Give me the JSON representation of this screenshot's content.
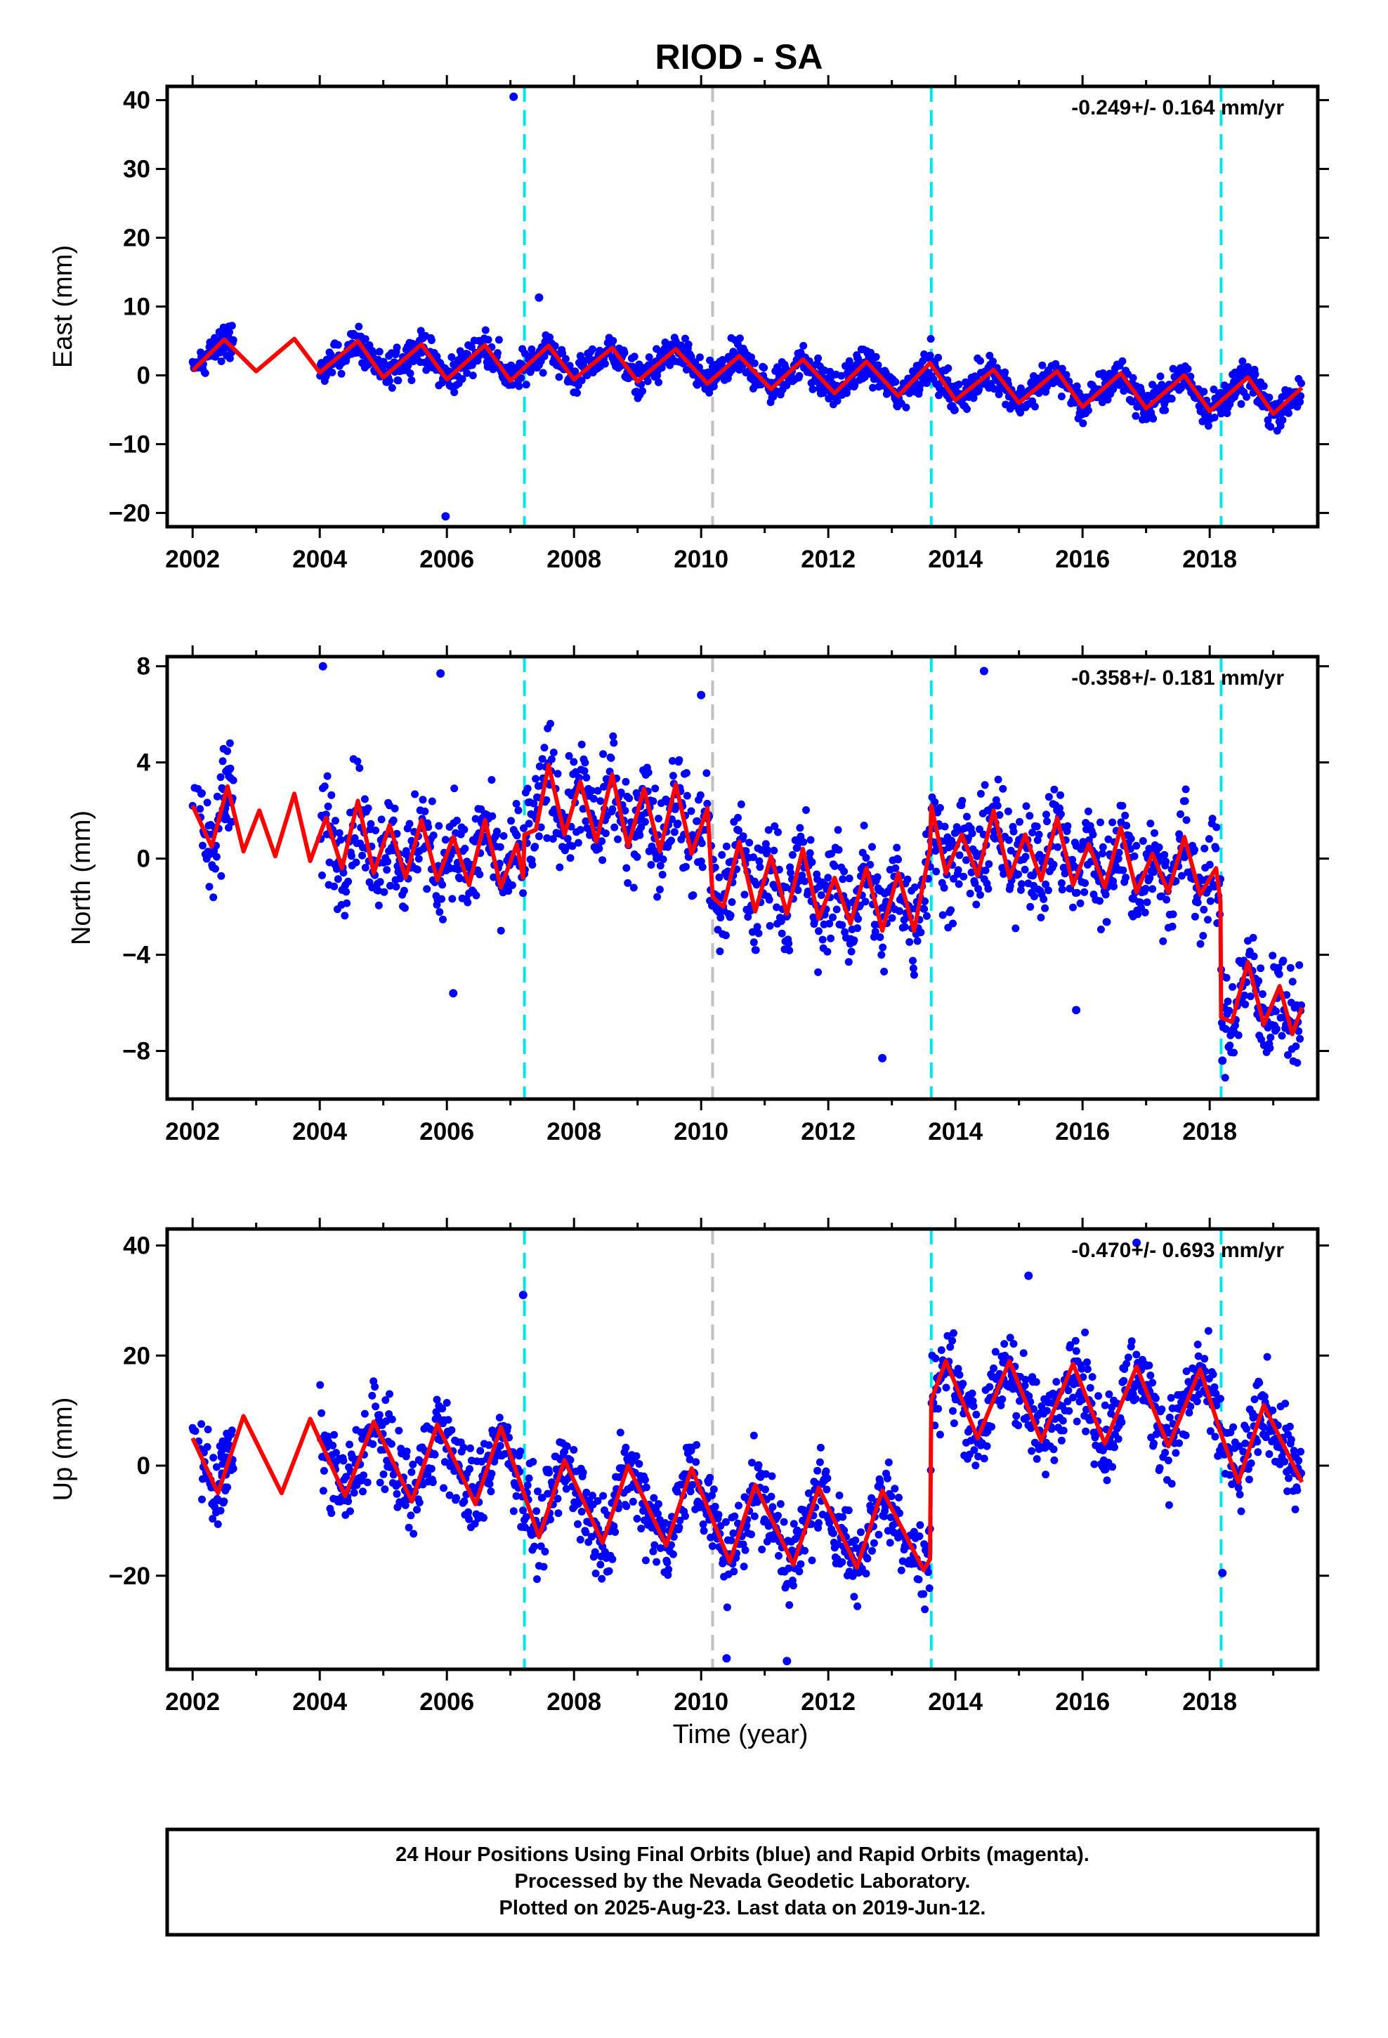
{
  "figure": {
    "title": "RIOD - SA",
    "xlabel": "Time (year)",
    "footer_lines": [
      "24 Hour Positions Using Final Orbits (blue) and Rapid Orbits (magenta).",
      "Processed by the Nevada Geodetic Laboratory.",
      "Plotted on 2025-Aug-23. Last data on 2019-Jun-12."
    ]
  },
  "colors": {
    "final_orbit_points": "#0000ff",
    "model_fit": "#ff0000",
    "equipment_change": "#00e5ee",
    "other_event": "#c0c0c0",
    "frame": "#000000"
  },
  "chart_data": [
    {
      "type": "scatter",
      "panel": "east",
      "ylabel": "East (mm)",
      "rate_label": "-0.249+/- 0.164 mm/yr",
      "xlim": [
        2001.6,
        2019.7
      ],
      "ylim": [
        -22,
        42
      ],
      "x_ticks": [
        2002,
        2004,
        2006,
        2008,
        2010,
        2012,
        2014,
        2016,
        2018
      ],
      "y_ticks": [
        -20,
        -10,
        0,
        10,
        20,
        30,
        40
      ],
      "event_lines": [
        {
          "x": 2007.22,
          "color": "#00e5ee"
        },
        {
          "x": 2010.18,
          "color": "#c0c0c0"
        },
        {
          "x": 2013.62,
          "color": "#00e5ee"
        },
        {
          "x": 2018.18,
          "color": "#00e5ee"
        }
      ],
      "fit": [
        [
          2002.0,
          0.7
        ],
        [
          2002.5,
          5.2
        ],
        [
          2003.0,
          0.6
        ],
        [
          2003.6,
          5.3
        ],
        [
          2004.0,
          0.4
        ],
        [
          2004.6,
          5.0
        ],
        [
          2005.0,
          -0.3
        ],
        [
          2005.6,
          4.5
        ],
        [
          2006.0,
          -0.6
        ],
        [
          2006.6,
          4.4
        ],
        [
          2007.0,
          -0.8
        ],
        [
          2007.6,
          4.3
        ],
        [
          2008.0,
          -0.6
        ],
        [
          2008.6,
          4.0
        ],
        [
          2009.0,
          -0.9
        ],
        [
          2009.6,
          3.8
        ],
        [
          2010.1,
          -1.2
        ],
        [
          2010.6,
          2.8
        ],
        [
          2011.1,
          -2.0
        ],
        [
          2011.6,
          2.3
        ],
        [
          2012.1,
          -2.6
        ],
        [
          2012.6,
          2.0
        ],
        [
          2013.1,
          -3.0
        ],
        [
          2013.6,
          1.8
        ],
        [
          2014.0,
          -3.6
        ],
        [
          2014.6,
          0.8
        ],
        [
          2015.0,
          -4.0
        ],
        [
          2015.6,
          0.6
        ],
        [
          2016.0,
          -4.6
        ],
        [
          2016.6,
          0.3
        ],
        [
          2017.0,
          -4.8
        ],
        [
          2017.6,
          0.0
        ],
        [
          2018.0,
          -5.2
        ],
        [
          2018.6,
          -0.3
        ],
        [
          2019.0,
          -5.6
        ],
        [
          2019.45,
          -1.8
        ]
      ],
      "outliers": [
        [
          2007.05,
          40.5
        ],
        [
          2005.98,
          -20.5
        ],
        [
          2007.45,
          11.3
        ]
      ]
    },
    {
      "type": "scatter",
      "panel": "north",
      "ylabel": "North (mm)",
      "rate_label": "-0.358+/- 0.181 mm/yr",
      "xlim": [
        2001.6,
        2019.7
      ],
      "ylim": [
        -10,
        8.4
      ],
      "x_ticks": [
        2002,
        2004,
        2006,
        2008,
        2010,
        2012,
        2014,
        2016,
        2018
      ],
      "y_ticks": [
        -8,
        -4,
        0,
        4,
        8
      ],
      "event_lines": [
        {
          "x": 2007.22,
          "color": "#00e5ee"
        },
        {
          "x": 2010.18,
          "color": "#c0c0c0"
        },
        {
          "x": 2013.62,
          "color": "#00e5ee"
        },
        {
          "x": 2018.18,
          "color": "#00e5ee"
        }
      ],
      "fit": [
        [
          2002.0,
          2.2
        ],
        [
          2002.3,
          0.5
        ],
        [
          2002.55,
          3.0
        ],
        [
          2002.8,
          0.3
        ],
        [
          2003.05,
          2.0
        ],
        [
          2003.3,
          0.1
        ],
        [
          2003.6,
          2.7
        ],
        [
          2003.85,
          -0.1
        ],
        [
          2004.1,
          1.7
        ],
        [
          2004.35,
          -0.4
        ],
        [
          2004.6,
          2.4
        ],
        [
          2004.85,
          -0.6
        ],
        [
          2005.1,
          1.4
        ],
        [
          2005.35,
          -0.8
        ],
        [
          2005.6,
          1.6
        ],
        [
          2005.85,
          -0.9
        ],
        [
          2006.1,
          0.9
        ],
        [
          2006.35,
          -1.1
        ],
        [
          2006.6,
          1.6
        ],
        [
          2006.85,
          -1.2
        ],
        [
          2007.1,
          0.6
        ],
        [
          2007.2,
          -0.8
        ],
        [
          2007.22,
          1.0
        ],
        [
          2007.4,
          1.2
        ],
        [
          2007.6,
          3.9
        ],
        [
          2007.85,
          1.0
        ],
        [
          2008.1,
          3.2
        ],
        [
          2008.35,
          0.7
        ],
        [
          2008.6,
          3.5
        ],
        [
          2008.85,
          0.5
        ],
        [
          2009.1,
          2.9
        ],
        [
          2009.35,
          0.3
        ],
        [
          2009.6,
          3.1
        ],
        [
          2009.85,
          0.2
        ],
        [
          2010.1,
          2.1
        ],
        [
          2010.18,
          -1.6
        ],
        [
          2010.35,
          -2.0
        ],
        [
          2010.6,
          0.7
        ],
        [
          2010.85,
          -2.2
        ],
        [
          2011.1,
          0.1
        ],
        [
          2011.35,
          -2.3
        ],
        [
          2011.6,
          0.4
        ],
        [
          2011.85,
          -2.5
        ],
        [
          2012.1,
          -0.8
        ],
        [
          2012.35,
          -2.7
        ],
        [
          2012.6,
          -0.4
        ],
        [
          2012.85,
          -3.0
        ],
        [
          2013.1,
          -0.6
        ],
        [
          2013.35,
          -3.0
        ],
        [
          2013.6,
          0.4
        ],
        [
          2013.62,
          2.2
        ],
        [
          2013.85,
          -0.6
        ],
        [
          2014.1,
          1.0
        ],
        [
          2014.35,
          -0.7
        ],
        [
          2014.6,
          2.0
        ],
        [
          2014.85,
          -0.8
        ],
        [
          2015.1,
          1.0
        ],
        [
          2015.35,
          -0.9
        ],
        [
          2015.6,
          1.7
        ],
        [
          2015.85,
          -1.1
        ],
        [
          2016.1,
          0.6
        ],
        [
          2016.35,
          -1.2
        ],
        [
          2016.6,
          1.3
        ],
        [
          2016.85,
          -1.4
        ],
        [
          2017.1,
          0.2
        ],
        [
          2017.35,
          -1.4
        ],
        [
          2017.6,
          0.9
        ],
        [
          2017.85,
          -1.5
        ],
        [
          2018.1,
          -0.4
        ],
        [
          2018.17,
          -1.8
        ],
        [
          2018.18,
          -6.6
        ],
        [
          2018.35,
          -6.8
        ],
        [
          2018.6,
          -4.3
        ],
        [
          2018.85,
          -6.9
        ],
        [
          2019.1,
          -5.3
        ],
        [
          2019.3,
          -7.3
        ],
        [
          2019.45,
          -6.2
        ]
      ],
      "outliers": [
        [
          2004.05,
          8.0
        ],
        [
          2005.9,
          7.7
        ],
        [
          2014.45,
          7.8
        ],
        [
          2010.0,
          6.8
        ],
        [
          2012.85,
          -8.3
        ],
        [
          2018.2,
          -8.4
        ],
        [
          2006.1,
          -5.6
        ],
        [
          2015.9,
          -6.3
        ]
      ]
    },
    {
      "type": "scatter",
      "panel": "up",
      "ylabel": "Up (mm)",
      "rate_label": "-0.470+/- 0.693 mm/yr",
      "xlim": [
        2001.6,
        2019.7
      ],
      "ylim": [
        -37,
        43
      ],
      "x_ticks": [
        2002,
        2004,
        2006,
        2008,
        2010,
        2012,
        2014,
        2016,
        2018
      ],
      "y_ticks": [
        -20,
        0,
        20,
        40
      ],
      "event_lines": [
        {
          "x": 2007.22,
          "color": "#00e5ee"
        },
        {
          "x": 2010.18,
          "color": "#c0c0c0"
        },
        {
          "x": 2013.62,
          "color": "#00e5ee"
        },
        {
          "x": 2018.18,
          "color": "#00e5ee"
        }
      ],
      "fit": [
        [
          2002.0,
          5.0
        ],
        [
          2002.4,
          -5.0
        ],
        [
          2002.8,
          9.0
        ],
        [
          2003.4,
          -5.0
        ],
        [
          2003.85,
          8.5
        ],
        [
          2004.4,
          -5.5
        ],
        [
          2004.85,
          8.0
        ],
        [
          2005.45,
          -6.5
        ],
        [
          2005.85,
          7.5
        ],
        [
          2006.45,
          -7.0
        ],
        [
          2006.85,
          7.0
        ],
        [
          2007.45,
          -13.0
        ],
        [
          2007.85,
          1.0
        ],
        [
          2008.45,
          -14.0
        ],
        [
          2008.85,
          0.0
        ],
        [
          2009.45,
          -14.5
        ],
        [
          2009.85,
          -0.5
        ],
        [
          2010.45,
          -17.5
        ],
        [
          2010.85,
          -3.5
        ],
        [
          2011.45,
          -18.0
        ],
        [
          2011.85,
          -4.0
        ],
        [
          2012.45,
          -18.5
        ],
        [
          2012.85,
          -4.5
        ],
        [
          2013.5,
          -19.0
        ],
        [
          2013.6,
          -17.0
        ],
        [
          2013.62,
          12.0
        ],
        [
          2013.85,
          19.0
        ],
        [
          2014.35,
          5.0
        ],
        [
          2014.85,
          19.0
        ],
        [
          2015.35,
          4.5
        ],
        [
          2015.85,
          18.5
        ],
        [
          2016.35,
          4.0
        ],
        [
          2016.85,
          18.0
        ],
        [
          2017.35,
          3.5
        ],
        [
          2017.85,
          17.5
        ],
        [
          2018.2,
          5.0
        ],
        [
          2018.45,
          -3.0
        ],
        [
          2018.85,
          11.0
        ],
        [
          2019.45,
          -3.0
        ]
      ],
      "outliers": [
        [
          2016.85,
          40.5
        ],
        [
          2018.2,
          -19.5
        ],
        [
          2011.35,
          -35.5
        ],
        [
          2010.4,
          -35.0
        ],
        [
          2007.2,
          31.0
        ],
        [
          2015.15,
          34.5
        ]
      ]
    }
  ]
}
